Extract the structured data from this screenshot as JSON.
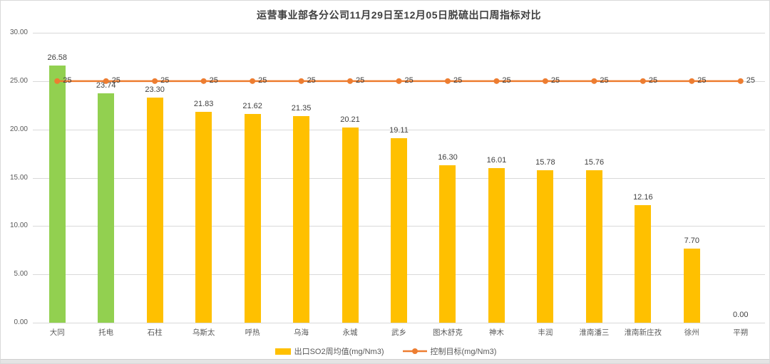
{
  "chart_data": {
    "type": "bar",
    "title": "运营事业部各分公司11月29日至12月05日脱硫出口周指标对比",
    "categories": [
      "大同",
      "托电",
      "石柱",
      "乌斯太",
      "呼热",
      "乌海",
      "永城",
      "武乡",
      "图木舒克",
      "神木",
      "丰润",
      "淮南潘三",
      "淮南新庄孜",
      "徐州",
      "平朔"
    ],
    "series": [
      {
        "name": "出口SO2周均值(mg/Nm3)",
        "type": "bar",
        "values": [
          26.58,
          23.74,
          23.3,
          21.83,
          21.62,
          21.35,
          20.21,
          19.11,
          16.3,
          16.01,
          15.78,
          15.76,
          12.16,
          7.7,
          0.0
        ],
        "point_colors": [
          "#92d050",
          "#92d050",
          "#ffc000",
          "#ffc000",
          "#ffc000",
          "#ffc000",
          "#ffc000",
          "#ffc000",
          "#ffc000",
          "#ffc000",
          "#ffc000",
          "#ffc000",
          "#ffc000",
          "#ffc000",
          "#ffc000"
        ]
      },
      {
        "name": "控制目标(mg/Nm3)",
        "type": "line",
        "values": [
          25,
          25,
          25,
          25,
          25,
          25,
          25,
          25,
          25,
          25,
          25,
          25,
          25,
          25,
          25
        ],
        "point_label": "25",
        "color": "#ed7d31"
      }
    ],
    "xlabel": "",
    "ylabel": "",
    "ylim": [
      0,
      30
    ],
    "ytick_step": 5,
    "ytick_labels": [
      "0.00",
      "5.00",
      "10.00",
      "15.00",
      "20.00",
      "25.00",
      "30.00"
    ],
    "grid": true,
    "legend_position": "bottom"
  },
  "colors": {
    "bar_default": "#ffc000",
    "bar_highlight": "#92d050",
    "line": "#ed7d31",
    "grid": "#d9d9d9",
    "axis_text": "#595959",
    "data_label_text": "#404040",
    "title_text": "#404040",
    "background": "#ffffff",
    "border": "#d9d9d9",
    "bottom_strip": "#e4e4e4"
  }
}
